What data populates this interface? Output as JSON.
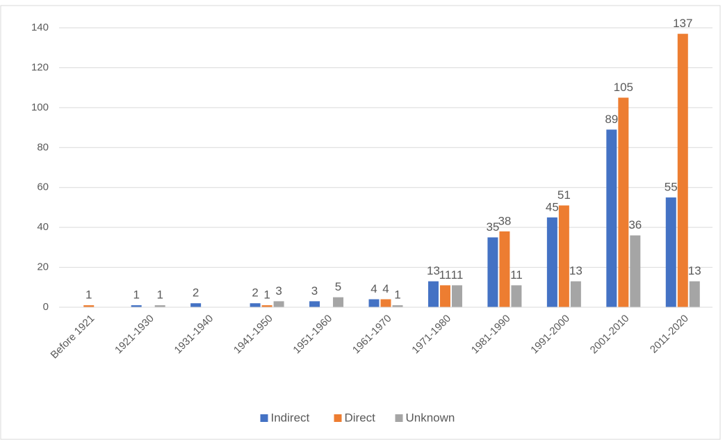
{
  "chart_data": {
    "type": "bar",
    "categories": [
      "Before 1921",
      "1921-1930",
      "1931-1940",
      "1941-1950",
      "1951-1960",
      "1961-1970",
      "1971-1980",
      "1981-1990",
      "1991-2000",
      "2001-2010",
      "2011-2020"
    ],
    "series": [
      {
        "name": "Indirect",
        "color": "#4472c4",
        "values": [
          null,
          1,
          2,
          2,
          3,
          4,
          13,
          35,
          45,
          89,
          55
        ]
      },
      {
        "name": "Direct",
        "color": "#ed7d31",
        "values": [
          1,
          null,
          null,
          1,
          null,
          4,
          11,
          38,
          51,
          105,
          137
        ]
      },
      {
        "name": "Unknown",
        "color": "#a5a5a5",
        "values": [
          null,
          1,
          null,
          3,
          5,
          1,
          11,
          11,
          13,
          36,
          13
        ]
      }
    ],
    "ylim": [
      0,
      140
    ],
    "yticks": [
      0,
      20,
      40,
      60,
      80,
      100,
      120,
      140
    ],
    "grid": true,
    "legend": "bottom"
  }
}
